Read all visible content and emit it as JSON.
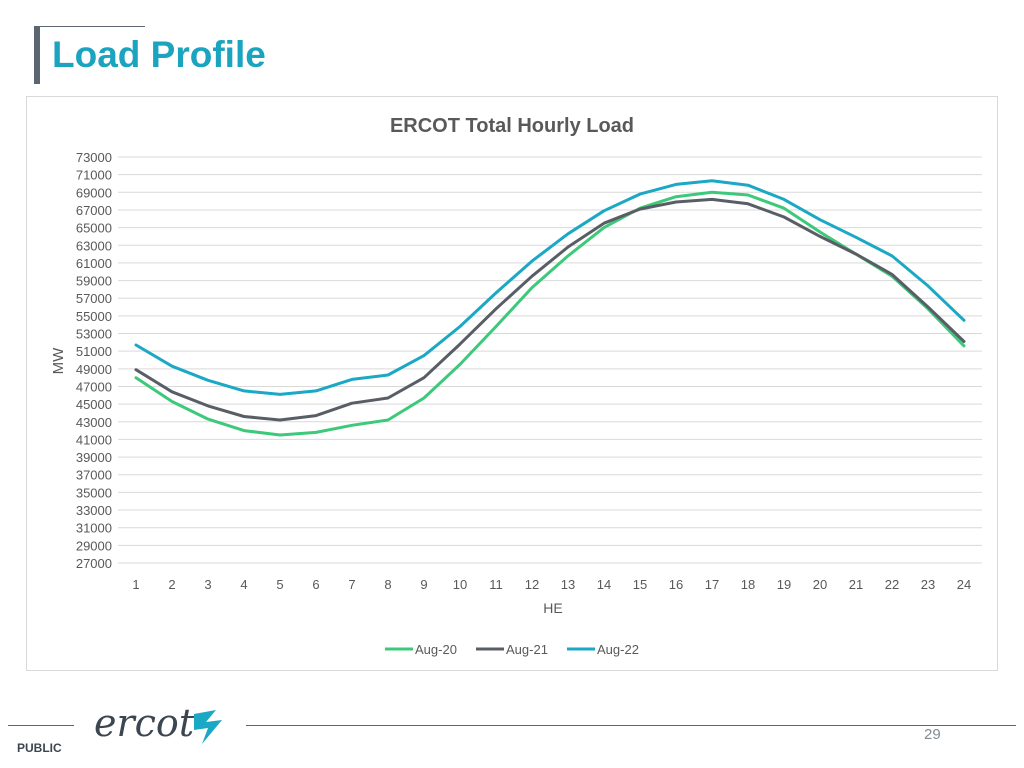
{
  "slide": {
    "title": "Load Profile",
    "page_number": "29",
    "classification": "PUBLIC",
    "logo_text": "ercot"
  },
  "colors": {
    "title": "#1aa4c0",
    "accent_bar": "#5b6670",
    "series": [
      "#3cc97a",
      "#595e66",
      "#1aa8c4"
    ]
  },
  "chart_data": {
    "type": "line",
    "title": "ERCOT Total Hourly Load",
    "xlabel": "HE",
    "ylabel": "MW",
    "ylim": [
      27000,
      73000
    ],
    "y_ticks": [
      27000,
      29000,
      31000,
      33000,
      35000,
      37000,
      39000,
      41000,
      43000,
      45000,
      47000,
      49000,
      51000,
      53000,
      55000,
      57000,
      59000,
      61000,
      63000,
      65000,
      67000,
      69000,
      71000,
      73000
    ],
    "x": [
      1,
      2,
      3,
      4,
      5,
      6,
      7,
      8,
      9,
      10,
      11,
      12,
      13,
      14,
      15,
      16,
      17,
      18,
      19,
      20,
      21,
      22,
      23,
      24
    ],
    "grid": true,
    "legend_position": "bottom",
    "series": [
      {
        "name": "Aug-20",
        "values": [
          48000,
          45300,
          43300,
          42000,
          41500,
          41800,
          42600,
          43200,
          45700,
          49500,
          53800,
          58200,
          61800,
          65000,
          67200,
          68500,
          69000,
          68700,
          67200,
          64500,
          62000,
          59500,
          55800,
          51600
        ]
      },
      {
        "name": "Aug-21",
        "values": [
          48900,
          46400,
          44800,
          43600,
          43200,
          43700,
          45100,
          45700,
          48000,
          51800,
          55800,
          59500,
          62800,
          65500,
          67100,
          67900,
          68200,
          67700,
          66200,
          64000,
          62000,
          59700,
          56000,
          52100
        ]
      },
      {
        "name": "Aug-22",
        "values": [
          51700,
          49300,
          47700,
          46500,
          46100,
          46500,
          47800,
          48300,
          50500,
          53800,
          57600,
          61200,
          64300,
          66900,
          68800,
          69900,
          70300,
          69800,
          68200,
          65900,
          63900,
          61800,
          58400,
          54500
        ]
      }
    ]
  }
}
